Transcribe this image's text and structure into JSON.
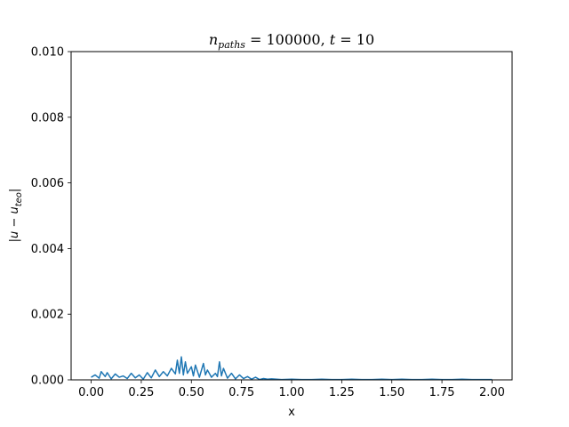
{
  "chart_data": {
    "type": "line",
    "title": "n_paths = 100000, t = 10",
    "title_parts": {
      "n_symbol": "n",
      "n_subscript": "paths",
      "n_value": " = 100000, ",
      "t_symbol": "t",
      "t_value": " = 10"
    },
    "xlabel": "x",
    "ylabel": "|u − u_teo|",
    "ylabel_parts": {
      "open": "|",
      "u": "u",
      "minus": " − ",
      "u2": "u",
      "subscript": "teo",
      "close": "|"
    },
    "xlim": [
      -0.1,
      2.1
    ],
    "ylim": [
      0.0,
      0.01
    ],
    "x_ticks": [
      0.0,
      0.25,
      0.5,
      0.75,
      1.0,
      1.25,
      1.5,
      1.75,
      2.0
    ],
    "x_tick_labels": [
      "0.00",
      "0.25",
      "0.50",
      "0.75",
      "1.00",
      "1.25",
      "1.50",
      "1.75",
      "2.00"
    ],
    "y_ticks": [
      0.0,
      0.002,
      0.004,
      0.006,
      0.008,
      0.01
    ],
    "y_tick_labels": [
      "0.000",
      "0.002",
      "0.004",
      "0.006",
      "0.008",
      "0.010"
    ],
    "grid": false,
    "series": [
      {
        "color": "#1f77b4",
        "x": [
          0.0,
          0.02,
          0.04,
          0.05,
          0.07,
          0.08,
          0.1,
          0.12,
          0.14,
          0.16,
          0.18,
          0.2,
          0.22,
          0.24,
          0.26,
          0.28,
          0.3,
          0.32,
          0.34,
          0.36,
          0.38,
          0.4,
          0.42,
          0.43,
          0.44,
          0.45,
          0.46,
          0.47,
          0.48,
          0.5,
          0.51,
          0.52,
          0.54,
          0.56,
          0.57,
          0.58,
          0.6,
          0.62,
          0.63,
          0.64,
          0.65,
          0.66,
          0.68,
          0.7,
          0.72,
          0.74,
          0.76,
          0.78,
          0.8,
          0.82,
          0.84,
          0.86,
          0.88,
          0.9,
          0.95,
          1.0,
          1.05,
          1.1,
          1.15,
          1.2,
          1.25,
          1.3,
          1.35,
          1.4,
          1.45,
          1.5,
          1.55,
          1.6,
          1.65,
          1.7,
          1.75,
          1.8,
          1.85,
          1.9,
          1.95,
          2.0
        ],
        "y": [
          8e-05,
          0.00015,
          5e-05,
          0.00025,
          0.0001,
          0.00022,
          3e-05,
          0.00018,
          8e-05,
          0.00012,
          4e-05,
          0.0002,
          6e-05,
          0.00015,
          2e-05,
          0.00022,
          6e-05,
          0.0003,
          0.0001,
          0.00025,
          0.00012,
          0.00035,
          0.00018,
          0.0006,
          0.0002,
          0.0007,
          0.00015,
          0.00055,
          0.0002,
          0.0004,
          0.00012,
          0.00045,
          8e-05,
          0.0005,
          0.00015,
          0.0003,
          8e-05,
          0.0002,
          0.0001,
          0.00055,
          0.00012,
          0.00035,
          5e-05,
          0.0002,
          3e-05,
          0.00015,
          4e-05,
          0.0001,
          2e-05,
          8e-05,
          1e-05,
          4e-05,
          2e-05,
          3e-05,
          1e-05,
          2e-05,
          1e-05,
          1e-05,
          2e-05,
          1e-05,
          1e-05,
          2e-05,
          1e-05,
          1e-05,
          2e-05,
          1e-05,
          2e-05,
          1e-05,
          1e-05,
          2e-05,
          1e-05,
          1e-05,
          2e-05,
          1e-05,
          1e-05,
          1e-05
        ]
      }
    ]
  }
}
